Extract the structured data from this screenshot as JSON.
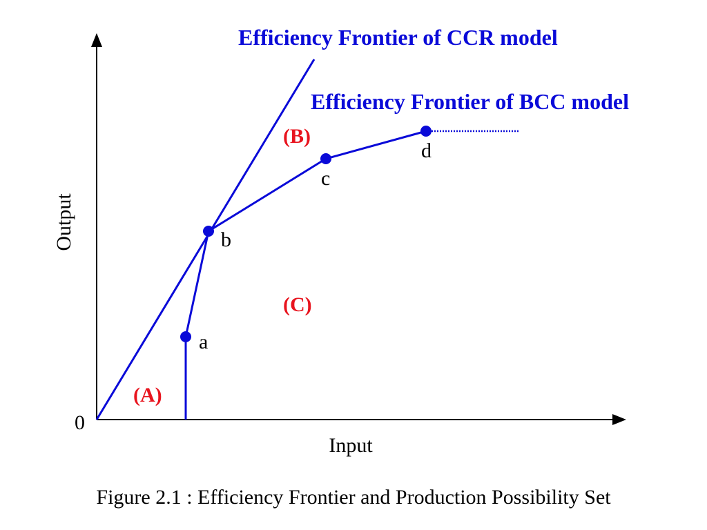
{
  "diagram": {
    "frontier_labels": {
      "ccr": "Efficiency Frontier of CCR model",
      "bcc": "Efficiency Frontier of BCC model"
    },
    "regions": {
      "a": "(A)",
      "b": "(B)",
      "c": "(C)"
    },
    "points": [
      "a",
      "b",
      "c",
      "d"
    ],
    "axes": {
      "x": "Input",
      "y": "Output",
      "origin": "0"
    },
    "caption": "Figure 2.1 : Efficiency Frontier and Production Possibility Set"
  }
}
